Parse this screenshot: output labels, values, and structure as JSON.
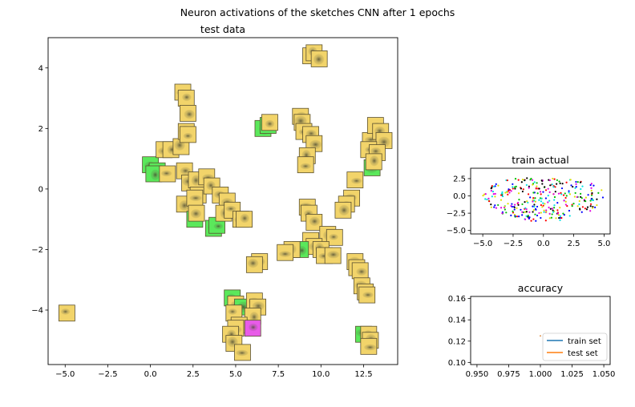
{
  "suptitle": "Neuron activations of the sketches CNN after 1 epochs",
  "colors": {
    "thumb_yellow": "#f2d46a",
    "thumb_green": "#5be85b",
    "thumb_magenta": "#e85be8",
    "train_line": "#1f77b4",
    "test_line": "#ff7f0e"
  },
  "chart_data": [
    {
      "name": "test data",
      "type": "scatter",
      "title": "test data",
      "xlim": [
        -6,
        14.5
      ],
      "ylim": [
        -5.8,
        5.0
      ],
      "xticks": [
        -5.0,
        -2.5,
        0.0,
        2.5,
        5.0,
        7.5,
        10.0,
        12.5
      ],
      "xtick_labels": [
        "−5.0",
        "−2.5",
        "0.0",
        "2.5",
        "5.0",
        "7.5",
        "10.0",
        "12.5"
      ],
      "yticks": [
        -4,
        -2,
        0,
        2,
        4
      ],
      "ytick_labels": [
        "−4",
        "−2",
        "0",
        "2",
        "4"
      ],
      "marker": "image thumbnail",
      "points": [
        {
          "x": -4.9,
          "y": -4.1,
          "c": "yellow"
        },
        {
          "x": 0.0,
          "y": 0.8,
          "c": "green"
        },
        {
          "x": 0.4,
          "y": 0.6,
          "c": "green"
        },
        {
          "x": 0.2,
          "y": 0.5,
          "c": "green"
        },
        {
          "x": 1.0,
          "y": 0.5,
          "c": "yellow"
        },
        {
          "x": 0.8,
          "y": 1.3,
          "c": "yellow"
        },
        {
          "x": 1.2,
          "y": 1.3,
          "c": "yellow"
        },
        {
          "x": 1.8,
          "y": 1.4,
          "c": "yellow"
        },
        {
          "x": 1.9,
          "y": 3.2,
          "c": "yellow"
        },
        {
          "x": 2.1,
          "y": 3.0,
          "c": "yellow"
        },
        {
          "x": 2.2,
          "y": 2.5,
          "c": "yellow"
        },
        {
          "x": 2.1,
          "y": 1.9,
          "c": "yellow"
        },
        {
          "x": 2.2,
          "y": 1.8,
          "c": "yellow"
        },
        {
          "x": 2.0,
          "y": 0.6,
          "c": "yellow"
        },
        {
          "x": 2.3,
          "y": 0.2,
          "c": "yellow"
        },
        {
          "x": 2.7,
          "y": 0.3,
          "c": "yellow"
        },
        {
          "x": 2.8,
          "y": -0.2,
          "c": "yellow"
        },
        {
          "x": 3.3,
          "y": 0.4,
          "c": "yellow"
        },
        {
          "x": 3.6,
          "y": 0.1,
          "c": "yellow"
        },
        {
          "x": 2.0,
          "y": -0.5,
          "c": "yellow"
        },
        {
          "x": 2.6,
          "y": -0.3,
          "c": "yellow"
        },
        {
          "x": 2.6,
          "y": -1.0,
          "c": "green"
        },
        {
          "x": 2.7,
          "y": -0.8,
          "c": "yellow"
        },
        {
          "x": 3.7,
          "y": -1.3,
          "c": "green"
        },
        {
          "x": 3.9,
          "y": -1.2,
          "c": "green"
        },
        {
          "x": 4.1,
          "y": -0.2,
          "c": "yellow"
        },
        {
          "x": 4.5,
          "y": -0.4,
          "c": "yellow"
        },
        {
          "x": 4.3,
          "y": -0.8,
          "c": "yellow"
        },
        {
          "x": 4.8,
          "y": -0.7,
          "c": "yellow"
        },
        {
          "x": 5.3,
          "y": -1.0,
          "c": "yellow"
        },
        {
          "x": 5.5,
          "y": -1.0,
          "c": "yellow"
        },
        {
          "x": 6.6,
          "y": 2.0,
          "c": "green"
        },
        {
          "x": 6.9,
          "y": 2.1,
          "c": "green"
        },
        {
          "x": 7.0,
          "y": 2.2,
          "c": "yellow"
        },
        {
          "x": 8.8,
          "y": 2.4,
          "c": "yellow"
        },
        {
          "x": 8.9,
          "y": 2.2,
          "c": "yellow"
        },
        {
          "x": 9.0,
          "y": 1.9,
          "c": "yellow"
        },
        {
          "x": 9.4,
          "y": 1.8,
          "c": "yellow"
        },
        {
          "x": 9.6,
          "y": 1.5,
          "c": "yellow"
        },
        {
          "x": 9.2,
          "y": 1.1,
          "c": "yellow"
        },
        {
          "x": 9.1,
          "y": 0.8,
          "c": "yellow"
        },
        {
          "x": 9.4,
          "y": 4.4,
          "c": "yellow"
        },
        {
          "x": 9.6,
          "y": 4.5,
          "c": "yellow"
        },
        {
          "x": 9.9,
          "y": 4.3,
          "c": "yellow"
        },
        {
          "x": 12.9,
          "y": 1.6,
          "c": "yellow"
        },
        {
          "x": 13.2,
          "y": 2.1,
          "c": "yellow"
        },
        {
          "x": 13.5,
          "y": 1.9,
          "c": "yellow"
        },
        {
          "x": 13.7,
          "y": 1.6,
          "c": "yellow"
        },
        {
          "x": 12.8,
          "y": 1.3,
          "c": "yellow"
        },
        {
          "x": 13.3,
          "y": 1.2,
          "c": "yellow"
        },
        {
          "x": 13.0,
          "y": 0.7,
          "c": "green"
        },
        {
          "x": 13.1,
          "y": 0.9,
          "c": "yellow"
        },
        {
          "x": 12.0,
          "y": 0.3,
          "c": "yellow"
        },
        {
          "x": 11.8,
          "y": -0.3,
          "c": "yellow"
        },
        {
          "x": 11.5,
          "y": -0.5,
          "c": "yellow"
        },
        {
          "x": 11.3,
          "y": -0.7,
          "c": "yellow"
        },
        {
          "x": 9.2,
          "y": -0.6,
          "c": "yellow"
        },
        {
          "x": 9.3,
          "y": -0.8,
          "c": "yellow"
        },
        {
          "x": 9.6,
          "y": -1.1,
          "c": "yellow"
        },
        {
          "x": 10.4,
          "y": -1.5,
          "c": "yellow"
        },
        {
          "x": 10.8,
          "y": -1.6,
          "c": "yellow"
        },
        {
          "x": 9.4,
          "y": -1.7,
          "c": "yellow"
        },
        {
          "x": 9.6,
          "y": -1.9,
          "c": "yellow"
        },
        {
          "x": 10.0,
          "y": -2.0,
          "c": "yellow"
        },
        {
          "x": 10.2,
          "y": -2.2,
          "c": "yellow"
        },
        {
          "x": 10.7,
          "y": -2.2,
          "c": "yellow"
        },
        {
          "x": 8.8,
          "y": -2.0,
          "c": "green"
        },
        {
          "x": 8.3,
          "y": -2.0,
          "c": "yellow"
        },
        {
          "x": 7.9,
          "y": -2.1,
          "c": "yellow"
        },
        {
          "x": 6.4,
          "y": -2.4,
          "c": "yellow"
        },
        {
          "x": 6.1,
          "y": -2.5,
          "c": "yellow"
        },
        {
          "x": 12.0,
          "y": -2.4,
          "c": "yellow"
        },
        {
          "x": 12.1,
          "y": -2.6,
          "c": "yellow"
        },
        {
          "x": 12.3,
          "y": -2.7,
          "c": "yellow"
        },
        {
          "x": 12.4,
          "y": -3.2,
          "c": "yellow"
        },
        {
          "x": 12.6,
          "y": -3.4,
          "c": "yellow"
        },
        {
          "x": 12.7,
          "y": -3.5,
          "c": "yellow"
        },
        {
          "x": 12.5,
          "y": -4.8,
          "c": "green"
        },
        {
          "x": 12.8,
          "y": -4.8,
          "c": "yellow"
        },
        {
          "x": 12.9,
          "y": -5.0,
          "c": "yellow"
        },
        {
          "x": 12.8,
          "y": -5.2,
          "c": "yellow"
        },
        {
          "x": 4.8,
          "y": -3.6,
          "c": "green"
        },
        {
          "x": 5.0,
          "y": -3.8,
          "c": "yellow"
        },
        {
          "x": 5.4,
          "y": -3.9,
          "c": "green"
        },
        {
          "x": 4.9,
          "y": -4.1,
          "c": "yellow"
        },
        {
          "x": 6.1,
          "y": -3.7,
          "c": "yellow"
        },
        {
          "x": 6.3,
          "y": -3.9,
          "c": "yellow"
        },
        {
          "x": 6.0,
          "y": -4.2,
          "c": "yellow"
        },
        {
          "x": 5.2,
          "y": -4.5,
          "c": "yellow"
        },
        {
          "x": 5.0,
          "y": -4.6,
          "c": "yellow"
        },
        {
          "x": 4.7,
          "y": -4.8,
          "c": "yellow"
        },
        {
          "x": 4.9,
          "y": -5.1,
          "c": "yellow"
        },
        {
          "x": 5.4,
          "y": -5.4,
          "c": "yellow"
        },
        {
          "x": 6.0,
          "y": -4.6,
          "c": "magenta"
        }
      ]
    },
    {
      "name": "train actual",
      "type": "scatter",
      "title": "train actual",
      "xlim": [
        -6.0,
        5.5
      ],
      "ylim": [
        -5.5,
        4.0
      ],
      "xticks": [
        -5.0,
        -2.5,
        0.0,
        2.5,
        5.0
      ],
      "xtick_labels": [
        "−5.0",
        "−2.5",
        "0.0",
        "2.5",
        "5.0"
      ],
      "yticks": [
        2.5,
        0.0,
        -2.5,
        -5.0
      ],
      "ytick_labels": [
        "2.5",
        "0.0",
        "−2.5",
        "−5.0"
      ],
      "point_count": 320,
      "point_colors": [
        "#ff0000",
        "#00c000",
        "#0000ff",
        "#00e0e0",
        "#e000e0",
        "#e0e000",
        "#000000"
      ]
    },
    {
      "name": "accuracy",
      "type": "line",
      "title": "accuracy",
      "xlim": [
        0.945,
        1.055
      ],
      "ylim": [
        0.098,
        0.162
      ],
      "xticks": [
        0.95,
        0.975,
        1.0,
        1.025,
        1.05
      ],
      "xtick_labels": [
        "0.950",
        "0.975",
        "1.000",
        "1.025",
        "1.050"
      ],
      "yticks": [
        0.1,
        0.12,
        0.14,
        0.16
      ],
      "ytick_labels": [
        "0.10",
        "0.12",
        "0.14",
        "0.16"
      ],
      "series": [
        {
          "name": "train set",
          "x": [
            1.0
          ],
          "y": [
            0.125
          ]
        },
        {
          "name": "test set",
          "x": [
            1.0
          ],
          "y": [
            0.125
          ]
        }
      ],
      "legend": "lower right"
    }
  ]
}
